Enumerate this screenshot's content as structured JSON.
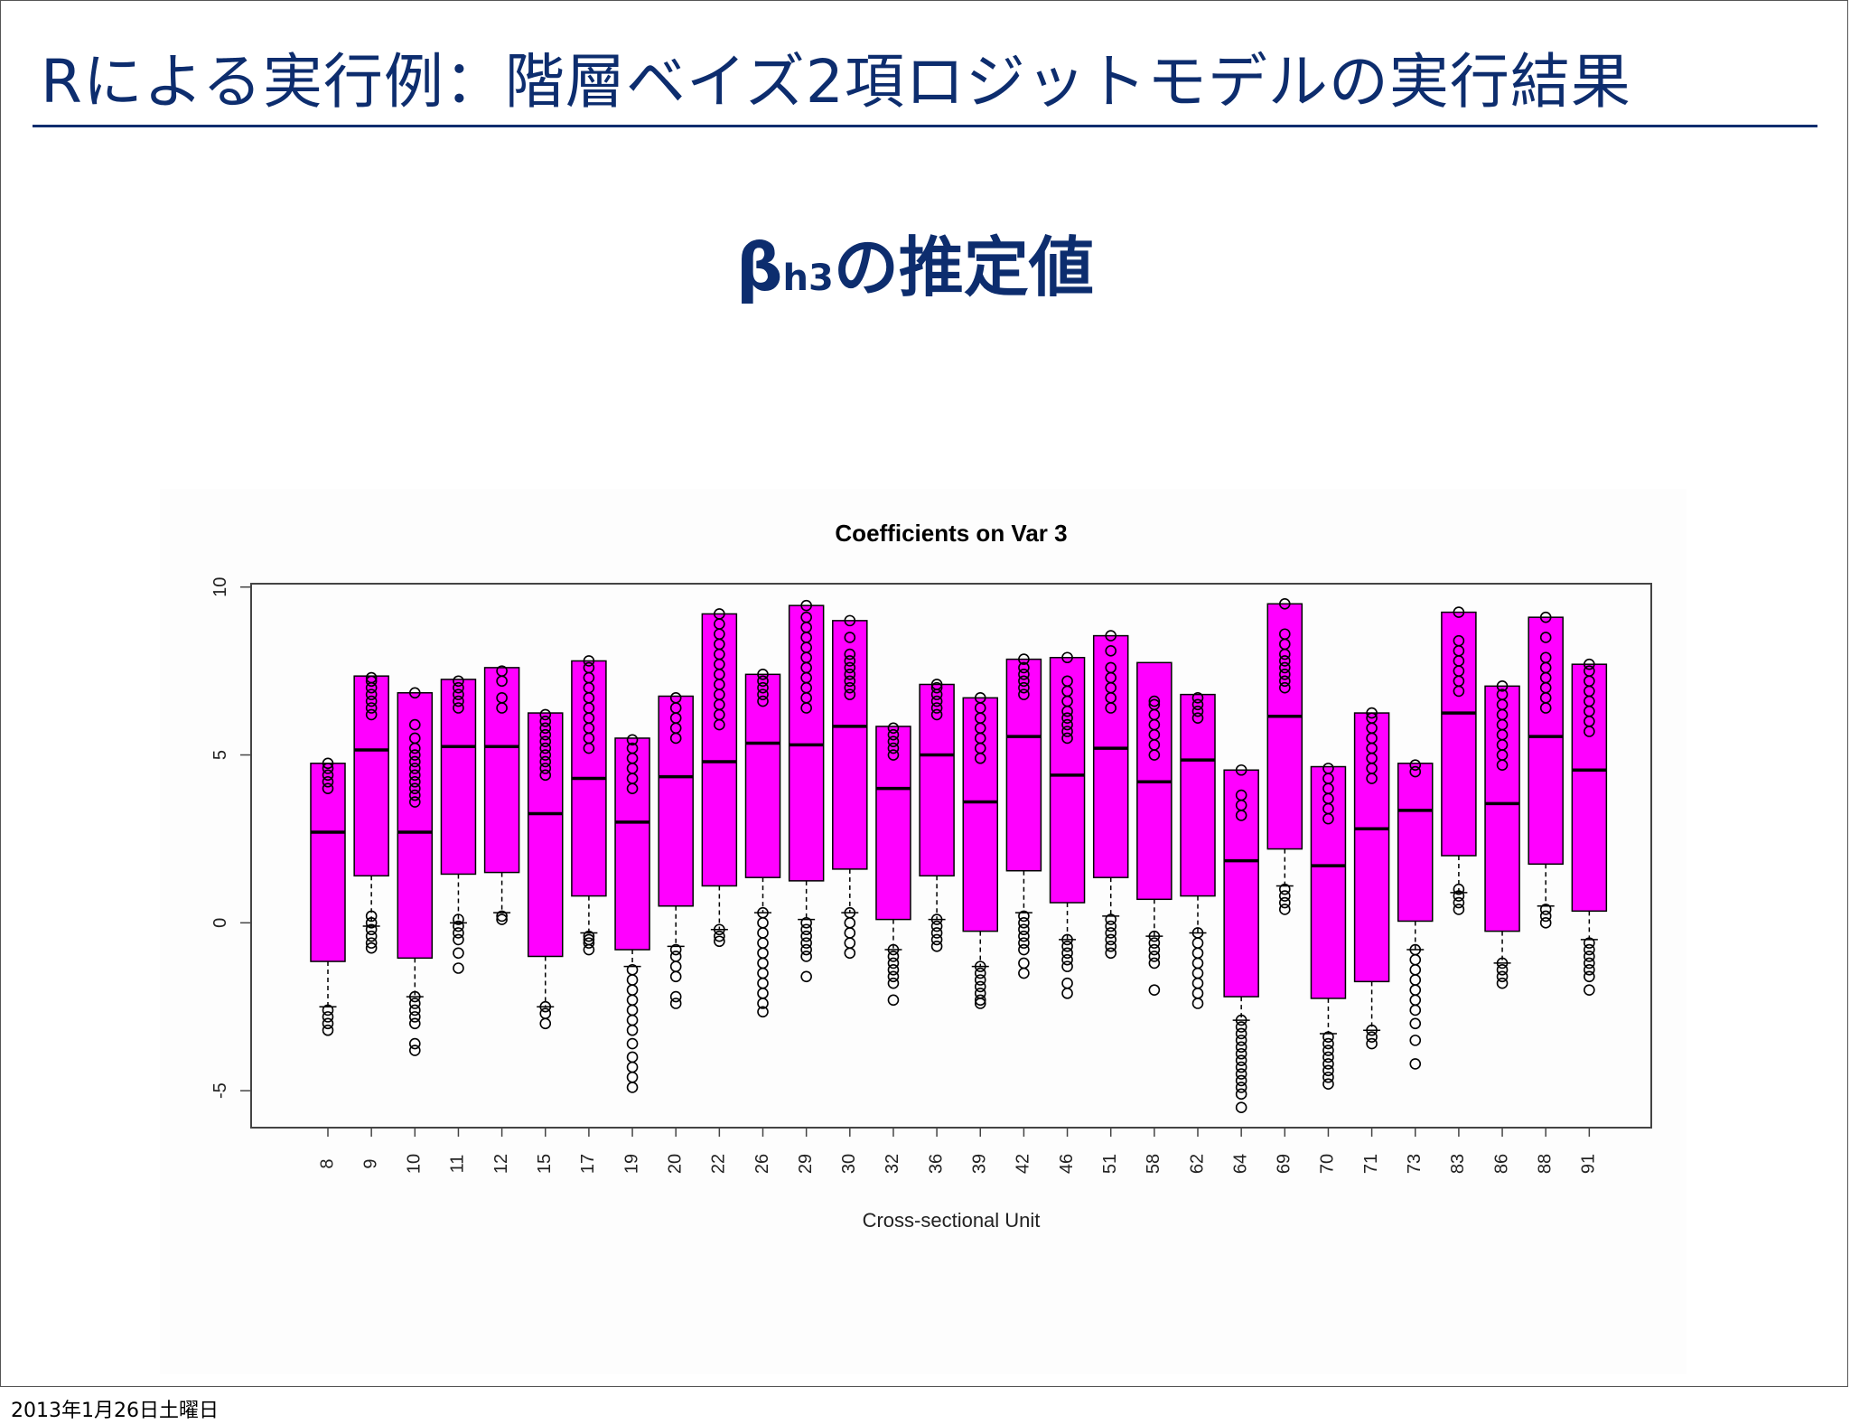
{
  "slide": {
    "title": "Rによる実行例：階層ベイズ2項ロジットモデルの実行結果",
    "subtitle_beta": "β",
    "subtitle_sub": "h3",
    "subtitle_rest": "の推定値",
    "footer_date": "2013年1月26日土曜日"
  },
  "colors": {
    "title_text": "#0d2d6e",
    "box_fill": "#ff00ff",
    "line": "#000000"
  },
  "chart_data": {
    "type": "boxplot",
    "title": "Coefficients on Var 3",
    "xlabel": "Cross-sectional Unit",
    "ylabel": "",
    "ylim": [
      -6.1,
      10.1
    ],
    "yticks": [
      -5,
      0,
      5,
      10
    ],
    "grid": false,
    "legend": "none",
    "boxes": [
      {
        "label": "8",
        "q1": -1.15,
        "median": 2.7,
        "q3": 4.75,
        "wlo": -2.5,
        "whi": 4.75,
        "lo_out": [
          -2.6,
          -2.8,
          -3.0,
          -3.2
        ],
        "hi_out": [
          4.0,
          4.2,
          4.4,
          4.6,
          4.75
        ]
      },
      {
        "label": "9",
        "q1": 1.4,
        "median": 5.15,
        "q3": 7.35,
        "wlo": -0.1,
        "whi": 7.35,
        "lo_out": [
          0.2,
          0.0,
          -0.2,
          -0.4,
          -0.6,
          -0.75
        ],
        "hi_out": [
          6.2,
          6.4,
          6.6,
          6.8,
          7.0,
          7.2,
          7.3
        ]
      },
      {
        "label": "10",
        "q1": -1.05,
        "median": 2.7,
        "q3": 6.85,
        "wlo": -2.2,
        "whi": 6.85,
        "lo_out": [
          -2.2,
          -2.4,
          -2.6,
          -2.8,
          -3.0,
          -3.6,
          -3.8
        ],
        "hi_out": [
          3.6,
          3.8,
          4.0,
          4.2,
          4.4,
          4.6,
          4.8,
          5.0,
          5.2,
          5.5,
          5.9,
          6.85
        ]
      },
      {
        "label": "11",
        "q1": 1.45,
        "median": 5.25,
        "q3": 7.25,
        "wlo": 0.0,
        "whi": 7.25,
        "lo_out": [
          0.1,
          -0.1,
          -0.3,
          -0.5,
          -0.9,
          -1.35
        ],
        "hi_out": [
          6.4,
          6.6,
          6.8,
          7.0,
          7.2
        ]
      },
      {
        "label": "12",
        "q1": 1.5,
        "median": 5.25,
        "q3": 7.6,
        "wlo": 0.3,
        "whi": 7.6,
        "lo_out": [
          0.2,
          0.1
        ],
        "hi_out": [
          6.4,
          6.7,
          7.2,
          7.5
        ]
      },
      {
        "label": "15",
        "q1": -1.0,
        "median": 3.25,
        "q3": 6.25,
        "wlo": -2.5,
        "whi": 6.25,
        "lo_out": [
          -2.5,
          -2.7,
          -3.0
        ],
        "hi_out": [
          4.4,
          4.6,
          4.8,
          5.0,
          5.2,
          5.4,
          5.6,
          5.8,
          6.0,
          6.2
        ]
      },
      {
        "label": "17",
        "q1": 0.8,
        "median": 4.3,
        "q3": 7.8,
        "wlo": -0.3,
        "whi": 7.8,
        "lo_out": [
          -0.4,
          -0.5,
          -0.6,
          -0.8
        ],
        "hi_out": [
          5.2,
          5.5,
          5.8,
          6.1,
          6.4,
          6.7,
          7.0,
          7.3,
          7.6,
          7.8
        ]
      },
      {
        "label": "19",
        "q1": -0.8,
        "median": 3.0,
        "q3": 5.5,
        "wlo": -1.3,
        "whi": 5.5,
        "lo_out": [
          -1.4,
          -1.7,
          -2.0,
          -2.3,
          -2.6,
          -2.9,
          -3.2,
          -3.6,
          -4.0,
          -4.3,
          -4.6,
          -4.9
        ],
        "hi_out": [
          4.0,
          4.3,
          4.6,
          4.9,
          5.2,
          5.45
        ]
      },
      {
        "label": "20",
        "q1": 0.5,
        "median": 4.35,
        "q3": 6.75,
        "wlo": -0.7,
        "whi": 6.75,
        "lo_out": [
          -0.8,
          -1.0,
          -1.3,
          -1.6,
          -2.2,
          -2.4
        ],
        "hi_out": [
          5.5,
          5.8,
          6.1,
          6.4,
          6.7
        ]
      },
      {
        "label": "22",
        "q1": 1.1,
        "median": 4.8,
        "q3": 9.2,
        "wlo": -0.2,
        "whi": 9.2,
        "lo_out": [
          -0.2,
          -0.4,
          -0.55
        ],
        "hi_out": [
          5.9,
          6.2,
          6.5,
          6.8,
          7.1,
          7.4,
          7.7,
          8.0,
          8.3,
          8.6,
          8.9,
          9.2
        ]
      },
      {
        "label": "26",
        "q1": 1.35,
        "median": 5.35,
        "q3": 7.4,
        "wlo": 0.3,
        "whi": 7.4,
        "lo_out": [
          0.3,
          0.0,
          -0.3,
          -0.6,
          -0.9,
          -1.2,
          -1.5,
          -1.8,
          -2.1,
          -2.4,
          -2.65
        ],
        "hi_out": [
          6.6,
          6.8,
          7.0,
          7.2,
          7.4
        ]
      },
      {
        "label": "29",
        "q1": 1.25,
        "median": 5.3,
        "q3": 9.45,
        "wlo": 0.1,
        "whi": 9.45,
        "lo_out": [
          0.0,
          -0.2,
          -0.4,
          -0.6,
          -0.8,
          -1.0,
          -1.6
        ],
        "hi_out": [
          6.4,
          6.7,
          7.0,
          7.3,
          7.6,
          7.9,
          8.2,
          8.5,
          8.8,
          9.1,
          9.45
        ]
      },
      {
        "label": "30",
        "q1": 1.6,
        "median": 5.85,
        "q3": 9.0,
        "wlo": 0.3,
        "whi": 9.0,
        "lo_out": [
          0.3,
          0.0,
          -0.3,
          -0.6,
          -0.9
        ],
        "hi_out": [
          6.8,
          7.0,
          7.2,
          7.4,
          7.6,
          7.8,
          8.0,
          8.5,
          9.0
        ]
      },
      {
        "label": "32",
        "q1": 0.1,
        "median": 4.0,
        "q3": 5.85,
        "wlo": -0.8,
        "whi": 5.85,
        "lo_out": [
          -0.8,
          -1.0,
          -1.2,
          -1.4,
          -1.6,
          -1.8,
          -2.3
        ],
        "hi_out": [
          5.0,
          5.2,
          5.4,
          5.6,
          5.8
        ]
      },
      {
        "label": "36",
        "q1": 1.4,
        "median": 5.0,
        "q3": 7.1,
        "wlo": 0.1,
        "whi": 7.1,
        "lo_out": [
          0.1,
          -0.1,
          -0.3,
          -0.5,
          -0.7
        ],
        "hi_out": [
          6.2,
          6.4,
          6.6,
          6.8,
          7.0,
          7.1
        ]
      },
      {
        "label": "39",
        "q1": -0.25,
        "median": 3.6,
        "q3": 6.7,
        "wlo": -1.3,
        "whi": 6.7,
        "lo_out": [
          -1.3,
          -1.5,
          -1.7,
          -1.9,
          -2.1,
          -2.3,
          -2.4
        ],
        "hi_out": [
          4.9,
          5.2,
          5.5,
          5.8,
          6.1,
          6.4,
          6.7
        ]
      },
      {
        "label": "42",
        "q1": 1.55,
        "median": 5.55,
        "q3": 7.85,
        "wlo": 0.3,
        "whi": 7.85,
        "lo_out": [
          0.2,
          0.0,
          -0.2,
          -0.4,
          -0.6,
          -0.8,
          -1.2,
          -1.5
        ],
        "hi_out": [
          6.8,
          7.0,
          7.2,
          7.4,
          7.6,
          7.85
        ]
      },
      {
        "label": "46",
        "q1": 0.6,
        "median": 4.4,
        "q3": 7.9,
        "wlo": -0.5,
        "whi": 7.9,
        "lo_out": [
          -0.5,
          -0.7,
          -0.9,
          -1.1,
          -1.3,
          -1.8,
          -2.1
        ],
        "hi_out": [
          5.5,
          5.7,
          5.9,
          6.1,
          6.3,
          6.6,
          6.9,
          7.2,
          7.9
        ]
      },
      {
        "label": "51",
        "q1": 1.35,
        "median": 5.2,
        "q3": 8.55,
        "wlo": 0.2,
        "whi": 8.55,
        "lo_out": [
          0.1,
          -0.1,
          -0.3,
          -0.5,
          -0.7,
          -0.9
        ],
        "hi_out": [
          6.4,
          6.7,
          7.0,
          7.3,
          7.6,
          8.1,
          8.55
        ]
      },
      {
        "label": "58",
        "q1": 0.7,
        "median": 4.2,
        "q3": 7.75,
        "wlo": -0.4,
        "whi": 7.75,
        "lo_out": [
          -0.4,
          -0.6,
          -0.8,
          -1.0,
          -1.2,
          -2.0
        ],
        "hi_out": [
          5.0,
          5.3,
          5.6,
          5.9,
          6.2,
          6.5,
          6.6
        ]
      },
      {
        "label": "62",
        "q1": 0.8,
        "median": 4.85,
        "q3": 6.8,
        "wlo": -0.3,
        "whi": 6.8,
        "lo_out": [
          -0.3,
          -0.6,
          -0.9,
          -1.2,
          -1.5,
          -1.8,
          -2.1,
          -2.4
        ],
        "hi_out": [
          6.1,
          6.3,
          6.5,
          6.7
        ]
      },
      {
        "label": "64",
        "q1": -2.2,
        "median": 1.85,
        "q3": 4.55,
        "wlo": -2.9,
        "whi": 4.55,
        "lo_out": [
          -2.9,
          -3.1,
          -3.3,
          -3.5,
          -3.7,
          -3.9,
          -4.1,
          -4.3,
          -4.5,
          -4.7,
          -4.9,
          -5.1,
          -5.5
        ],
        "hi_out": [
          3.2,
          3.5,
          3.8,
          4.55
        ]
      },
      {
        "label": "69",
        "q1": 2.2,
        "median": 6.15,
        "q3": 9.5,
        "wlo": 1.1,
        "whi": 9.5,
        "lo_out": [
          1.0,
          0.8,
          0.6,
          0.4
        ],
        "hi_out": [
          7.0,
          7.2,
          7.4,
          7.6,
          7.8,
          8.0,
          8.3,
          8.6,
          9.5
        ]
      },
      {
        "label": "70",
        "q1": -2.25,
        "median": 1.7,
        "q3": 4.65,
        "wlo": -3.3,
        "whi": 4.65,
        "lo_out": [
          -3.4,
          -3.6,
          -3.8,
          -4.0,
          -4.2,
          -4.4,
          -4.6,
          -4.8
        ],
        "hi_out": [
          3.1,
          3.4,
          3.7,
          4.0,
          4.3,
          4.6
        ]
      },
      {
        "label": "71",
        "q1": -1.75,
        "median": 2.8,
        "q3": 6.25,
        "wlo": -3.2,
        "whi": 6.25,
        "lo_out": [
          -3.2,
          -3.4,
          -3.6
        ],
        "hi_out": [
          4.3,
          4.6,
          4.9,
          5.2,
          5.5,
          5.8,
          6.1,
          6.25
        ]
      },
      {
        "label": "73",
        "q1": 0.05,
        "median": 3.35,
        "q3": 4.75,
        "wlo": -0.8,
        "whi": 4.75,
        "lo_out": [
          -0.8,
          -1.1,
          -1.4,
          -1.7,
          -2.0,
          -2.3,
          -2.6,
          -3.0,
          -3.5,
          -4.2
        ],
        "hi_out": [
          4.5,
          4.7
        ]
      },
      {
        "label": "83",
        "q1": 2.0,
        "median": 6.25,
        "q3": 9.25,
        "wlo": 0.9,
        "whi": 9.25,
        "lo_out": [
          1.0,
          0.8,
          0.6,
          0.4
        ],
        "hi_out": [
          6.9,
          7.2,
          7.5,
          7.8,
          8.1,
          8.4,
          9.25
        ]
      },
      {
        "label": "86",
        "q1": -0.25,
        "median": 3.55,
        "q3": 7.05,
        "wlo": -1.2,
        "whi": 7.05,
        "lo_out": [
          -1.2,
          -1.4,
          -1.6,
          -1.8
        ],
        "hi_out": [
          4.7,
          5.0,
          5.3,
          5.6,
          5.9,
          6.2,
          6.5,
          6.8,
          7.05
        ]
      },
      {
        "label": "88",
        "q1": 1.75,
        "median": 5.55,
        "q3": 9.1,
        "wlo": 0.5,
        "whi": 9.1,
        "lo_out": [
          0.4,
          0.2,
          0.0
        ],
        "hi_out": [
          6.4,
          6.7,
          7.0,
          7.3,
          7.6,
          7.9,
          8.5,
          9.1
        ]
      },
      {
        "label": "91",
        "q1": 0.35,
        "median": 4.55,
        "q3": 7.7,
        "wlo": -0.5,
        "whi": 7.7,
        "lo_out": [
          -0.6,
          -0.8,
          -1.0,
          -1.2,
          -1.4,
          -1.6,
          -2.0
        ],
        "hi_out": [
          5.7,
          6.0,
          6.3,
          6.6,
          6.9,
          7.2,
          7.5,
          7.7
        ]
      }
    ]
  }
}
